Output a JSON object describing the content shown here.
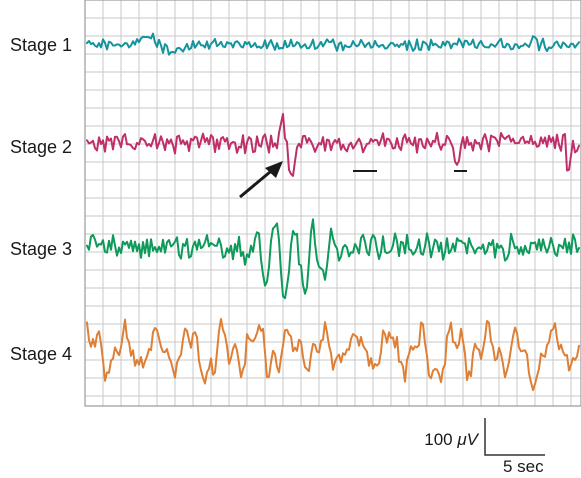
{
  "stages": [
    {
      "label": "Stage 1",
      "color": "#14949c"
    },
    {
      "label": "Stage 2",
      "color": "#bf2f6a"
    },
    {
      "label": "Stage 3",
      "color": "#0e9a5b"
    },
    {
      "label": "Stage 4",
      "color": "#de7f35"
    }
  ],
  "scale_bar": {
    "amplitude_label_number": "100",
    "amplitude_label_unit": "μV",
    "time_label": "5 sec"
  },
  "grid": {
    "color": "#c9c9c9",
    "frame_color": "#9a9a9a"
  },
  "annotations": {
    "arrow_color": "#1a1a1a",
    "marker_color": "#1a1a1a"
  }
}
